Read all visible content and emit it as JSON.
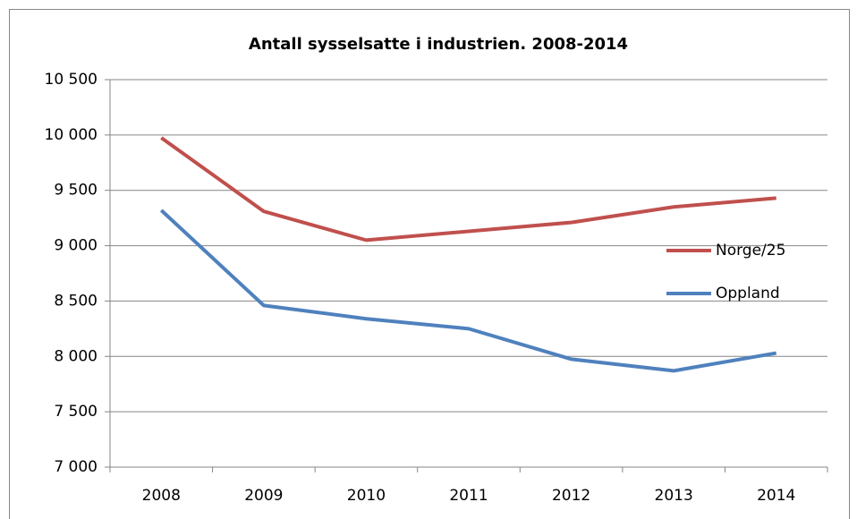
{
  "chart_data": {
    "type": "line",
    "title": "Antall sysselsatte i industrien. 2008-2014",
    "categories": [
      "2008",
      "2009",
      "2010",
      "2011",
      "2012",
      "2013",
      "2014"
    ],
    "series": [
      {
        "name": "Norge/25",
        "color": "#c0504d",
        "values": [
          9975,
          9310,
          9050,
          9130,
          9210,
          9350,
          9430
        ]
      },
      {
        "name": "Oppland",
        "color": "#4f81bd",
        "values": [
          9320,
          8460,
          8340,
          8250,
          7975,
          7870,
          8030
        ]
      }
    ],
    "ylim": [
      7000,
      10500
    ],
    "yticks": [
      {
        "value": 7000,
        "label": "7 000"
      },
      {
        "value": 7500,
        "label": "7 500"
      },
      {
        "value": 8000,
        "label": "8 000"
      },
      {
        "value": 8500,
        "label": "8 500"
      },
      {
        "value": 9000,
        "label": "9 000"
      },
      {
        "value": 9500,
        "label": "9 500"
      },
      {
        "value": 10000,
        "label": "10 000"
      },
      {
        "value": 10500,
        "label": "10 500"
      }
    ],
    "grid": true,
    "legend": "right"
  }
}
